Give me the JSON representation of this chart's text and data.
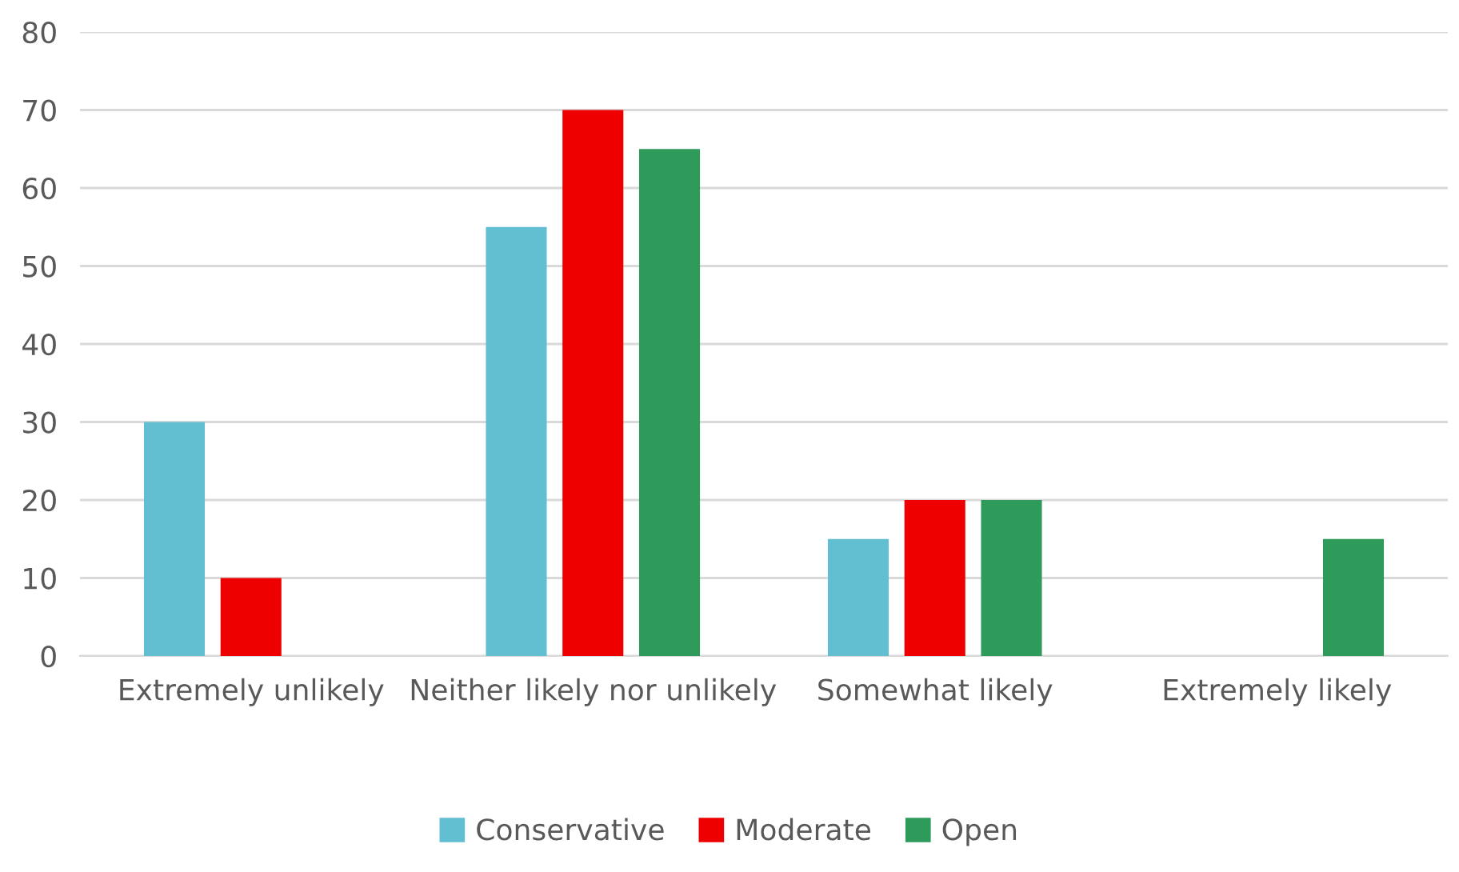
{
  "chart_data": {
    "type": "bar",
    "categories": [
      "Extremely unlikely",
      "Neither likely nor unlikely",
      "Somewhat likely",
      "Extremely likely"
    ],
    "series": [
      {
        "name": "Conservative",
        "color": "#62bfd2",
        "values": [
          30,
          55,
          15,
          0
        ]
      },
      {
        "name": "Moderate",
        "color": "#ee0000",
        "values": [
          10,
          70,
          20,
          0
        ]
      },
      {
        "name": "Open",
        "color": "#2e9b5a",
        "values": [
          0,
          65,
          20,
          15
        ]
      }
    ],
    "ylim": [
      0,
      80
    ],
    "yticks": [
      0,
      10,
      20,
      30,
      40,
      50,
      60,
      70,
      80
    ],
    "grid": "y",
    "legend": "bottom"
  }
}
